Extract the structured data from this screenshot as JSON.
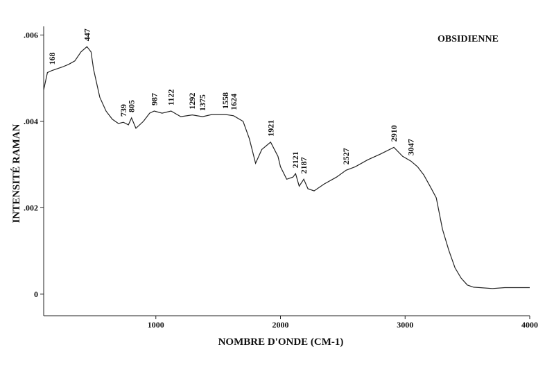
{
  "chart_data": {
    "type": "line",
    "title": "OBSIDIENNE",
    "x_label": "NOMBRE D'ONDE (CM-1)",
    "y_label": "INTENSITÉ RAMAN",
    "xlim": [
      100,
      4000
    ],
    "xticks": [
      1000,
      2000,
      3000,
      4000
    ],
    "ylim": [
      -0.0005,
      0.0062
    ],
    "yticks": [
      0,
      {
        "value": 0.002,
        "label": ".002"
      },
      {
        "value": 0.004,
        "label": ".004"
      },
      {
        "value": 0.006,
        "label": ".006"
      }
    ],
    "peaks": [
      168,
      447,
      739,
      805,
      987,
      1122,
      1292,
      1375,
      1558,
      1624,
      1921,
      2121,
      2187,
      2527,
      2910,
      3047
    ],
    "series": [
      {
        "color": "#222",
        "x": [
          100,
          130,
          168,
          200,
          250,
          300,
          350,
          400,
          447,
          480,
          500,
          550,
          600,
          650,
          700,
          739,
          780,
          805,
          840,
          900,
          950,
          987,
          1050,
          1122,
          1200,
          1292,
          1375,
          1450,
          1558,
          1624,
          1700,
          1750,
          1800,
          1850,
          1921,
          1980,
          2000,
          2050,
          2100,
          2121,
          2150,
          2187,
          2220,
          2270,
          2350,
          2450,
          2527,
          2600,
          2700,
          2800,
          2910,
          2980,
          3047,
          3100,
          3150,
          3200,
          3250,
          3300,
          3350,
          3400,
          3450,
          3500,
          3550,
          3600,
          3700,
          3800,
          3900,
          4000
        ],
        "values": [
          0.00473,
          0.00513,
          0.00518,
          0.00521,
          0.00526,
          0.00532,
          0.0054,
          0.00561,
          0.00573,
          0.00561,
          0.00521,
          0.00456,
          0.00424,
          0.00405,
          0.00395,
          0.00398,
          0.00392,
          0.00408,
          0.00384,
          0.004,
          0.00419,
          0.00424,
          0.00419,
          0.00424,
          0.00411,
          0.00415,
          0.00411,
          0.00416,
          0.00416,
          0.00413,
          0.004,
          0.0036,
          0.00303,
          0.00335,
          0.00352,
          0.00319,
          0.00295,
          0.00266,
          0.00271,
          0.00279,
          0.0025,
          0.00266,
          0.00244,
          0.00239,
          0.00255,
          0.00271,
          0.00287,
          0.00295,
          0.00311,
          0.00324,
          0.0034,
          0.00319,
          0.00308,
          0.00295,
          0.00276,
          0.0025,
          0.00223,
          0.0015,
          0.00102,
          0.00061,
          0.00037,
          0.00021,
          0.00016,
          0.00015,
          0.00013,
          0.00015,
          0.00015,
          0.00015
        ]
      }
    ]
  }
}
